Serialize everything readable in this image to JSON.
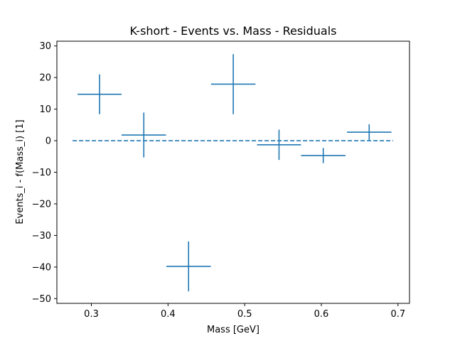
{
  "chart_data": {
    "type": "scatter",
    "title": "K-short - Events vs. Mass - Residuals",
    "xlabel": "Mass [GeV]",
    "ylabel": "Events_i - f(Mass_i) [1]",
    "xlim": [
      0.255,
      0.715
    ],
    "ylim": [
      -51.5,
      31.5
    ],
    "xticks": [
      0.3,
      0.4,
      0.5,
      0.6,
      0.7
    ],
    "xtick_labels": [
      "0.3",
      "0.4",
      "0.5",
      "0.6",
      "0.7"
    ],
    "yticks": [
      30,
      20,
      10,
      0,
      -10,
      -20,
      -30,
      -40,
      -50
    ],
    "ytick_labels": [
      "30",
      "20",
      "10",
      "0",
      "−10",
      "−20",
      "−30",
      "−40",
      "−50"
    ],
    "grid": false,
    "series": [
      {
        "color": "#1f77b4",
        "points": [
          {
            "x": 0.3107,
            "y": 14.7,
            "xerr": 0.0287,
            "yerr": 6.3
          },
          {
            "x": 0.3684,
            "y": 1.8,
            "xerr": 0.029,
            "yerr": 7.1
          },
          {
            "x": 0.4268,
            "y": -39.8,
            "xerr": 0.029,
            "yerr": 7.9
          },
          {
            "x": 0.4851,
            "y": 17.9,
            "xerr": 0.029,
            "yerr": 9.5
          },
          {
            "x": 0.5448,
            "y": -1.3,
            "xerr": 0.0287,
            "yerr": 4.8
          },
          {
            "x": 0.6025,
            "y": -4.7,
            "xerr": 0.029,
            "yerr": 2.4
          },
          {
            "x": 0.6624,
            "y": 2.7,
            "xerr": 0.029,
            "yerr": 2.5
          }
        ]
      }
    ],
    "reference_line": {
      "y": 0,
      "x_start": 0.2755,
      "x_end": 0.6937,
      "style": "dashed",
      "color": "#1f77b4"
    }
  }
}
